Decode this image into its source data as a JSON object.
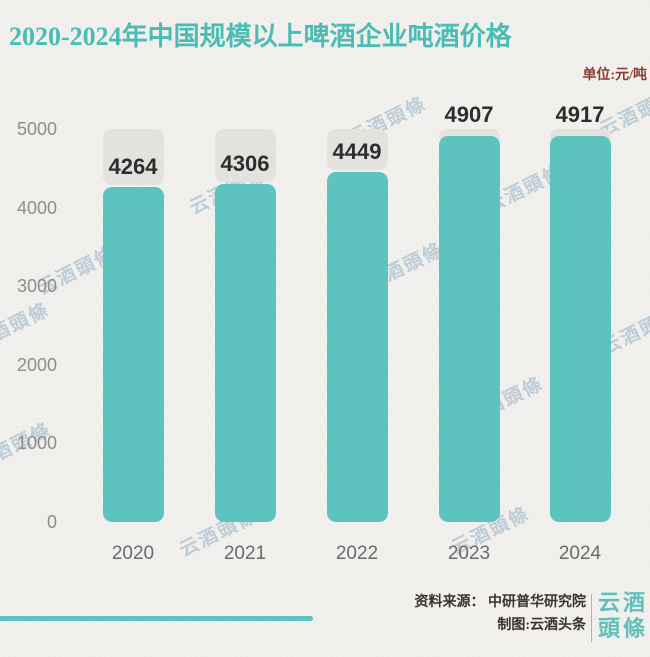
{
  "title": "2020-2024年中国规模以上啤酒企业吨酒价格",
  "unit_label": "单位:元/吨",
  "watermark_text": "云酒頭條",
  "chart_data": {
    "type": "bar",
    "title": "2020-2024年中国规模以上啤酒企业吨酒价格",
    "unit": "元/吨",
    "categories": [
      "2020",
      "2021",
      "2022",
      "2023",
      "2024"
    ],
    "values": [
      4264,
      4306,
      4449,
      4907,
      4917
    ],
    "xlabel": "",
    "ylabel": "元/吨",
    "ylim": [
      0,
      5000
    ],
    "yticks": [
      0,
      1000,
      2000,
      3000,
      4000,
      5000
    ],
    "grid": false,
    "legend": false,
    "bar_color": "#5cc3bf",
    "cap_color": "#e4e2df",
    "value_label_color": "#2d2d2d"
  },
  "footer": {
    "source_line": "资料来源： 中研普华研究院",
    "credit_line": "制图:云酒头条",
    "logo_line1": "云酒",
    "logo_line2": "頭條"
  },
  "colors": {
    "background": "#f2f1ee",
    "title": "#4abcb4",
    "unit_label": "#8a3c2e",
    "axis_text": "#8d8d8d",
    "year_text": "#6b6b6b",
    "bar": "#5cc3bf",
    "cap": "#e4e2df",
    "footer_text": "#39322f",
    "logo": "#5fc0ba",
    "accent_line": "#5cc3bf",
    "watermark": "#94b0c6"
  }
}
